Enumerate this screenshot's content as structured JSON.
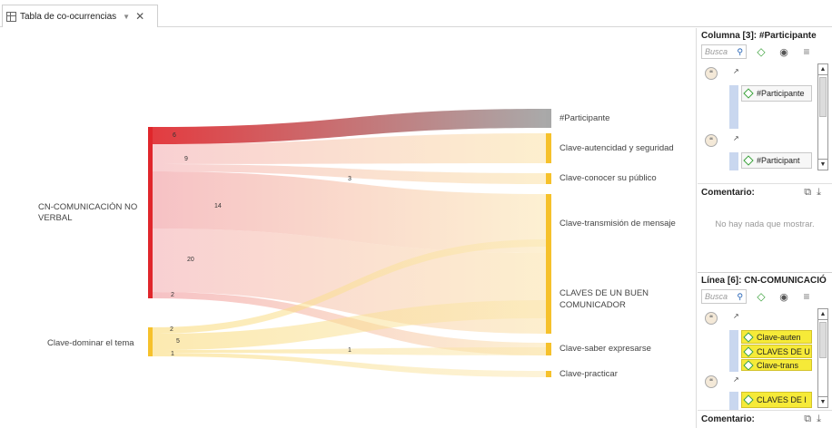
{
  "tab": {
    "title": "Tabla de co-ocurrencias",
    "dropdown": "▼",
    "close": "✕"
  },
  "sankey": {
    "left_nodes": [
      {
        "label": "CN-COMUNICACIÓN NO VERBAL",
        "color": "#e0262b"
      },
      {
        "label": "Clave-dominar el tema",
        "color": "#f6c12b"
      }
    ],
    "right_nodes": [
      {
        "label": "#Participante",
        "color": "#a8a8a8"
      },
      {
        "label": "Clave-autencidad y seguridad",
        "color": "#f6c12b"
      },
      {
        "label": "Clave-conocer su público",
        "color": "#f6c12b"
      },
      {
        "label": "Clave-transmisión de mensaje",
        "color": "#f6c12b"
      },
      {
        "label": "CLAVES DE UN BUEN COMUNICADOR",
        "color": "#f6c12b"
      },
      {
        "label": "Clave-saber expresarse",
        "color": "#f6c12b"
      },
      {
        "label": "Clave-practicar",
        "color": "#f6c12b"
      }
    ],
    "flows": [
      {
        "from": 0,
        "to": 0,
        "value": "6"
      },
      {
        "from": 0,
        "to": 1,
        "value": "9"
      },
      {
        "from": 0,
        "to": 2,
        "value": "3"
      },
      {
        "from": 0,
        "to": 3,
        "value": "14"
      },
      {
        "from": 0,
        "to": 4,
        "value": "20"
      },
      {
        "from": 0,
        "to": 5,
        "value": "2"
      },
      {
        "from": 1,
        "to": 3,
        "value": "2"
      },
      {
        "from": 1,
        "to": 4,
        "value": "5"
      },
      {
        "from": 1,
        "to": 5,
        "value": "1"
      },
      {
        "from": 1,
        "to": 6,
        "value": "1"
      }
    ]
  },
  "column_panel": {
    "header": "Columna [3]: #Participante",
    "search_placeholder": "Busca",
    "items": [
      "#Participante",
      "#Participant"
    ],
    "comment_label": "Comentario:",
    "empty_message": "No hay nada que mostrar."
  },
  "line_panel": {
    "header": "Línea [6]: CN-COMUNICACIÓ",
    "search_placeholder": "Busca",
    "group1": [
      "Clave-auten",
      "CLAVES DE U",
      "Clave-trans"
    ],
    "group2": [
      "CLAVES DE I"
    ],
    "comment_label": "Comentario:"
  }
}
